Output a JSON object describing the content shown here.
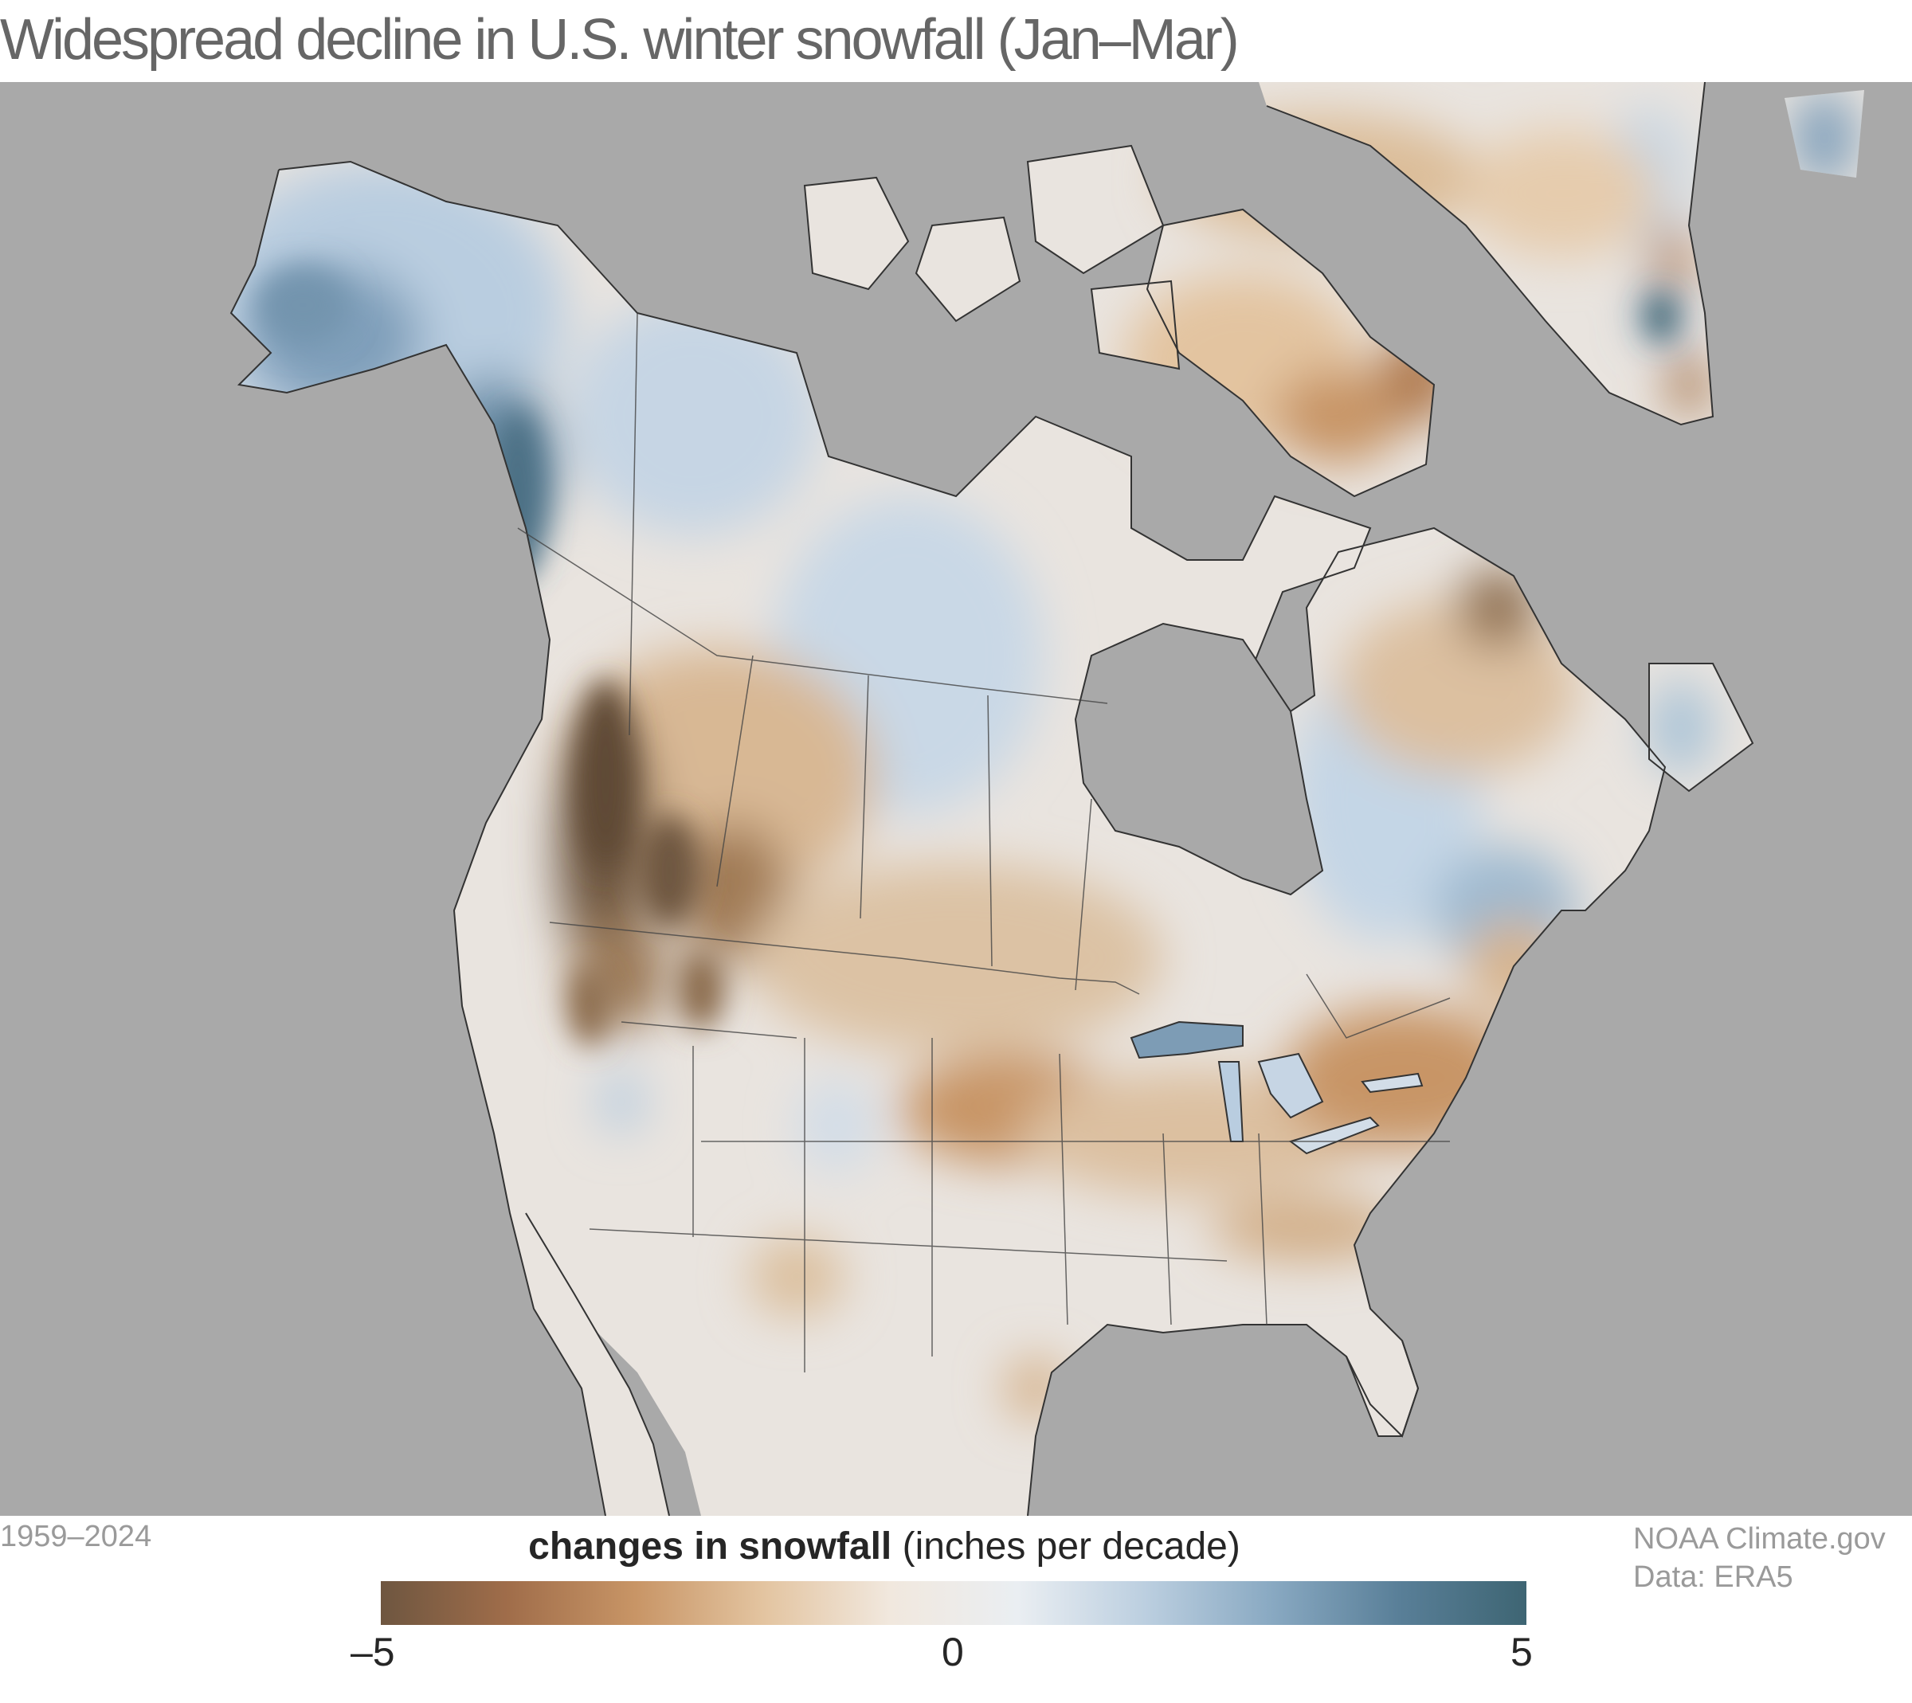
{
  "title": "Widespread decline in U.S. winter snowfall (Jan–Mar)",
  "period": "1959–2024",
  "legend": {
    "title_bold": "changes in snowfall",
    "title_rest": " (inches per decade)",
    "min_label": "–5",
    "mid_label": "0",
    "max_label": "5",
    "range": [
      -5,
      5
    ],
    "colors": [
      "#6e5640",
      "#a06d4a",
      "#c89566",
      "#e3c4a0",
      "#f1e8de",
      "#eaeef2",
      "#bccfe0",
      "#89a9c2",
      "#597f98",
      "#3e6573"
    ]
  },
  "credit": {
    "source": "NOAA Climate.gov",
    "data": "Data: ERA5"
  },
  "map": {
    "ocean_color": "#a9a9a9",
    "border_color": "#333333"
  }
}
